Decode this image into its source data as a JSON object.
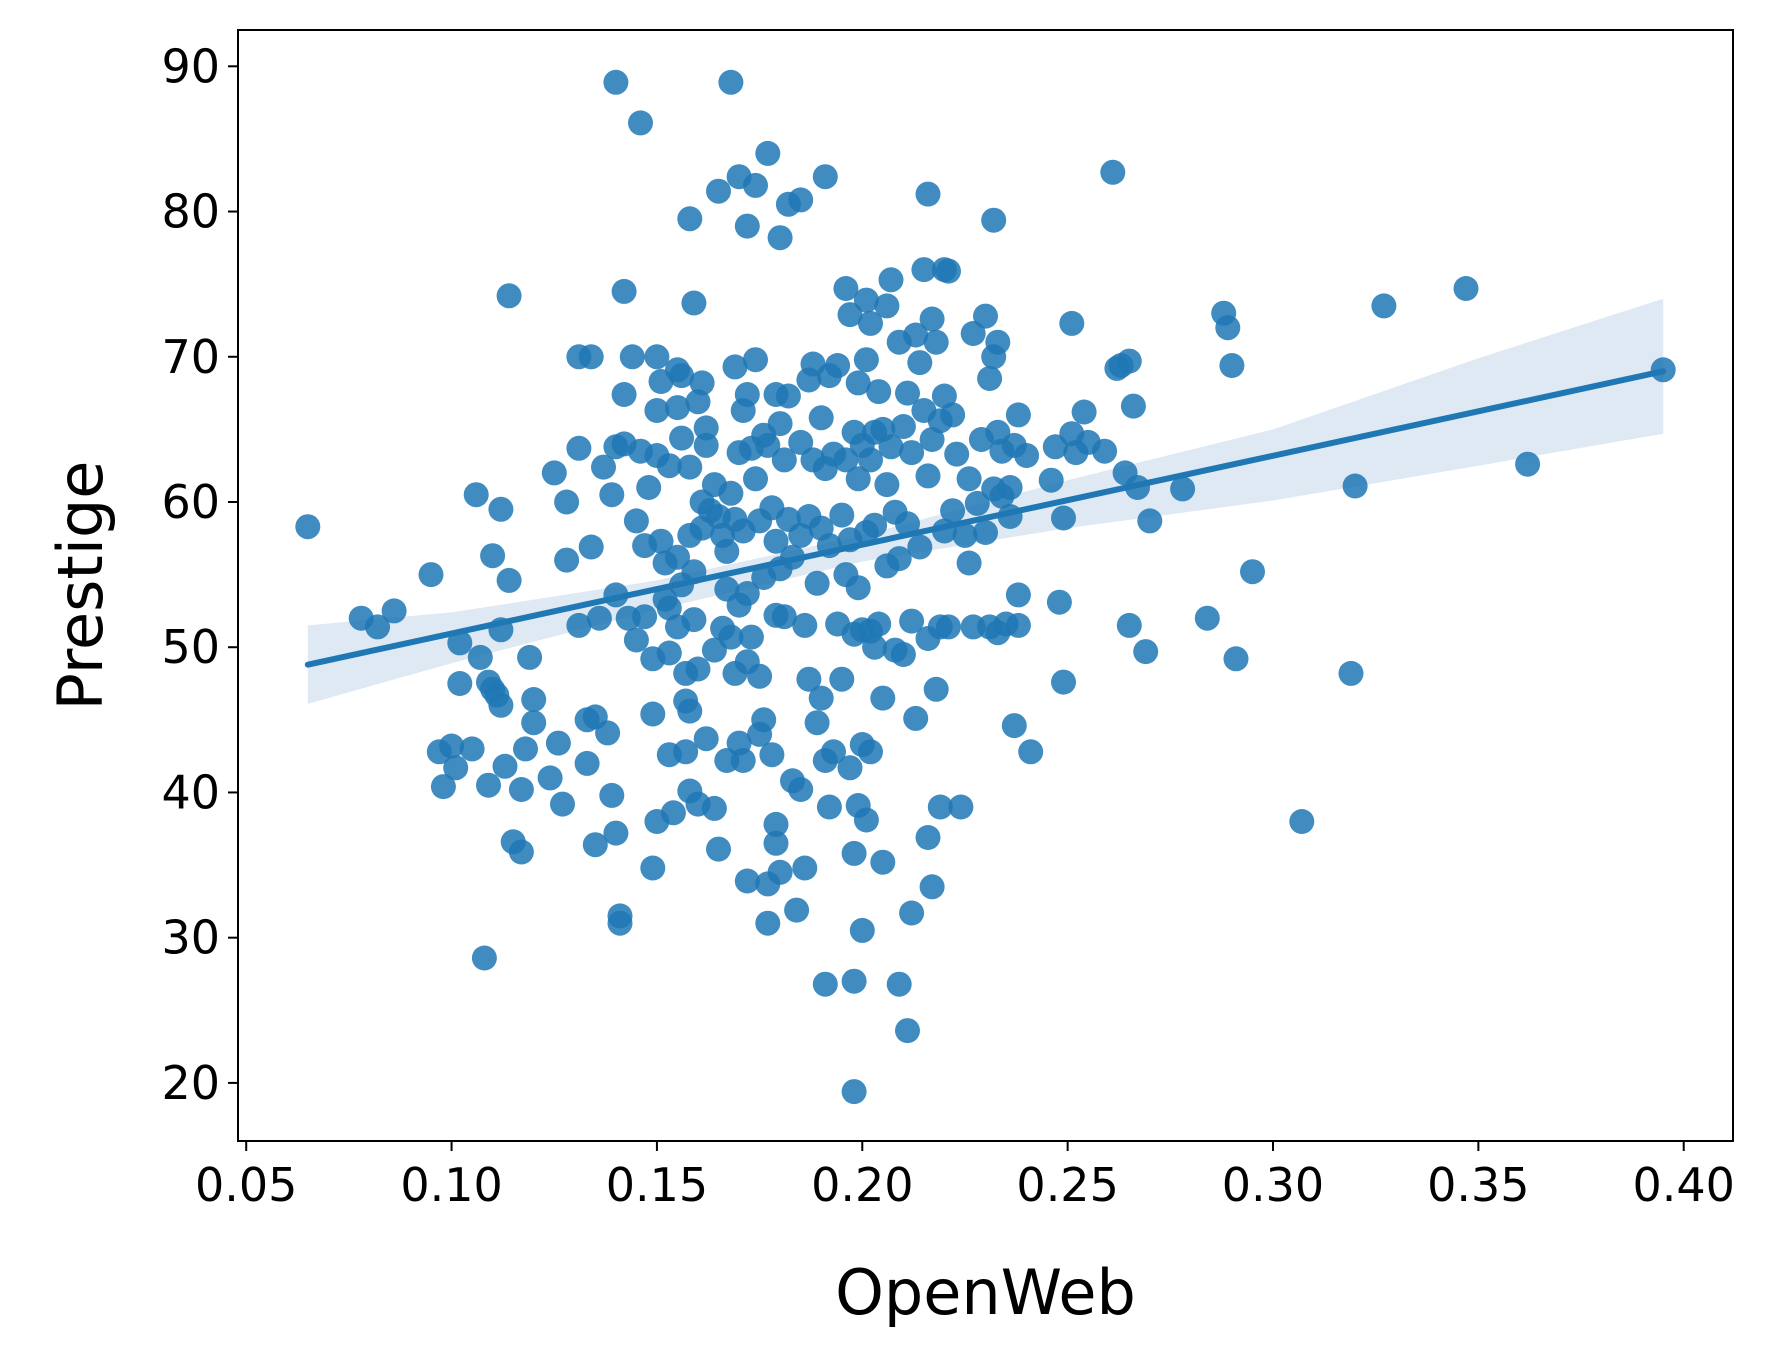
{
  "chart_data": {
    "type": "scatter",
    "title": "",
    "xlabel": "OpenWeb",
    "ylabel": "Prestige",
    "xlim": [
      0.048,
      0.412
    ],
    "ylim": [
      16,
      92.5
    ],
    "xticks": [
      0.05,
      0.1,
      0.15,
      0.2,
      0.25,
      0.3,
      0.35,
      0.4
    ],
    "xtick_labels": [
      "0.05",
      "0.10",
      "0.15",
      "0.20",
      "0.25",
      "0.30",
      "0.35",
      "0.40"
    ],
    "yticks": [
      20,
      30,
      40,
      50,
      60,
      70,
      80,
      90
    ],
    "ytick_labels": [
      "20",
      "30",
      "40",
      "50",
      "60",
      "70",
      "80",
      "90"
    ],
    "grid": false,
    "colors": {
      "points": "#1f77b4",
      "line": "#1f77b4",
      "band": "#dbe7f3"
    },
    "regression": {
      "x": [
        0.065,
        0.395
      ],
      "y": [
        48.8,
        69.0
      ]
    },
    "confidence_band": {
      "x": [
        0.065,
        0.1,
        0.15,
        0.2,
        0.25,
        0.3,
        0.35,
        0.395
      ],
      "lower": [
        46.1,
        48.9,
        52.6,
        55.9,
        58.2,
        60.1,
        62.5,
        64.7
      ],
      "upper": [
        51.5,
        52.4,
        54.6,
        57.7,
        61.5,
        65.0,
        69.9,
        74.0
      ]
    },
    "points": [
      [
        0.065,
        58.3
      ],
      [
        0.078,
        52.0
      ],
      [
        0.082,
        51.4
      ],
      [
        0.086,
        52.5
      ],
      [
        0.095,
        55.0
      ],
      [
        0.097,
        42.8
      ],
      [
        0.098,
        40.4
      ],
      [
        0.1,
        43.2
      ],
      [
        0.101,
        41.7
      ],
      [
        0.102,
        50.3
      ],
      [
        0.102,
        47.5
      ],
      [
        0.105,
        43.0
      ],
      [
        0.106,
        60.5
      ],
      [
        0.107,
        49.3
      ],
      [
        0.108,
        28.6
      ],
      [
        0.109,
        47.6
      ],
      [
        0.109,
        40.5
      ],
      [
        0.11,
        56.3
      ],
      [
        0.11,
        47.1
      ],
      [
        0.111,
        46.7
      ],
      [
        0.112,
        59.5
      ],
      [
        0.112,
        51.2
      ],
      [
        0.112,
        46.0
      ],
      [
        0.113,
        41.8
      ],
      [
        0.114,
        74.2
      ],
      [
        0.114,
        54.6
      ],
      [
        0.115,
        36.6
      ],
      [
        0.117,
        35.9
      ],
      [
        0.117,
        40.2
      ],
      [
        0.118,
        43.0
      ],
      [
        0.119,
        49.3
      ],
      [
        0.12,
        46.4
      ],
      [
        0.12,
        44.8
      ],
      [
        0.124,
        41.0
      ],
      [
        0.125,
        62.0
      ],
      [
        0.126,
        43.4
      ],
      [
        0.127,
        39.2
      ],
      [
        0.128,
        60.0
      ],
      [
        0.128,
        56.0
      ],
      [
        0.131,
        70.0
      ],
      [
        0.131,
        63.7
      ],
      [
        0.131,
        51.5
      ],
      [
        0.133,
        45.0
      ],
      [
        0.133,
        42.0
      ],
      [
        0.134,
        70.0
      ],
      [
        0.134,
        56.9
      ],
      [
        0.135,
        45.2
      ],
      [
        0.135,
        36.4
      ],
      [
        0.136,
        52.0
      ],
      [
        0.137,
        62.4
      ],
      [
        0.138,
        44.1
      ],
      [
        0.139,
        60.5
      ],
      [
        0.139,
        39.8
      ],
      [
        0.14,
        88.9
      ],
      [
        0.14,
        53.6
      ],
      [
        0.14,
        63.8
      ],
      [
        0.14,
        37.2
      ],
      [
        0.141,
        31.5
      ],
      [
        0.141,
        31.0
      ],
      [
        0.142,
        74.5
      ],
      [
        0.142,
        67.4
      ],
      [
        0.142,
        64.0
      ],
      [
        0.143,
        52.0
      ],
      [
        0.144,
        70.0
      ],
      [
        0.145,
        58.7
      ],
      [
        0.145,
        50.5
      ],
      [
        0.146,
        86.1
      ],
      [
        0.146,
        63.5
      ],
      [
        0.147,
        57.0
      ],
      [
        0.147,
        52.1
      ],
      [
        0.148,
        61.0
      ],
      [
        0.149,
        49.2
      ],
      [
        0.149,
        45.4
      ],
      [
        0.149,
        34.8
      ],
      [
        0.15,
        70.0
      ],
      [
        0.15,
        66.3
      ],
      [
        0.15,
        63.2
      ],
      [
        0.15,
        38.0
      ],
      [
        0.151,
        68.3
      ],
      [
        0.151,
        57.3
      ],
      [
        0.152,
        55.8
      ],
      [
        0.152,
        53.3
      ],
      [
        0.153,
        62.5
      ],
      [
        0.153,
        52.7
      ],
      [
        0.153,
        49.6
      ],
      [
        0.153,
        42.6
      ],
      [
        0.154,
        38.6
      ],
      [
        0.155,
        69.1
      ],
      [
        0.155,
        66.5
      ],
      [
        0.155,
        56.2
      ],
      [
        0.155,
        51.4
      ],
      [
        0.156,
        68.7
      ],
      [
        0.156,
        64.4
      ],
      [
        0.156,
        54.3
      ],
      [
        0.157,
        46.3
      ],
      [
        0.157,
        42.8
      ],
      [
        0.157,
        48.2
      ],
      [
        0.158,
        79.5
      ],
      [
        0.158,
        62.4
      ],
      [
        0.158,
        57.7
      ],
      [
        0.158,
        45.6
      ],
      [
        0.158,
        40.1
      ],
      [
        0.159,
        73.7
      ],
      [
        0.159,
        55.2
      ],
      [
        0.159,
        51.9
      ],
      [
        0.16,
        66.9
      ],
      [
        0.16,
        48.5
      ],
      [
        0.16,
        39.2
      ],
      [
        0.161,
        68.2
      ],
      [
        0.161,
        60.0
      ],
      [
        0.161,
        58.2
      ],
      [
        0.162,
        65.1
      ],
      [
        0.162,
        63.9
      ],
      [
        0.162,
        43.7
      ],
      [
        0.163,
        59.4
      ],
      [
        0.164,
        61.2
      ],
      [
        0.164,
        49.8
      ],
      [
        0.164,
        38.9
      ],
      [
        0.165,
        81.4
      ],
      [
        0.165,
        59.0
      ],
      [
        0.165,
        36.1
      ],
      [
        0.166,
        57.7
      ],
      [
        0.166,
        51.3
      ],
      [
        0.167,
        56.6
      ],
      [
        0.167,
        54.0
      ],
      [
        0.167,
        42.2
      ],
      [
        0.168,
        88.9
      ],
      [
        0.168,
        60.6
      ],
      [
        0.168,
        50.7
      ],
      [
        0.169,
        69.3
      ],
      [
        0.169,
        58.8
      ],
      [
        0.169,
        48.2
      ],
      [
        0.17,
        82.4
      ],
      [
        0.17,
        63.4
      ],
      [
        0.17,
        52.9
      ],
      [
        0.17,
        43.4
      ],
      [
        0.171,
        66.3
      ],
      [
        0.171,
        58.0
      ],
      [
        0.171,
        42.2
      ],
      [
        0.172,
        79.0
      ],
      [
        0.172,
        67.4
      ],
      [
        0.172,
        53.7
      ],
      [
        0.172,
        49.0
      ],
      [
        0.172,
        33.9
      ],
      [
        0.173,
        63.7
      ],
      [
        0.173,
        50.7
      ],
      [
        0.174,
        81.8
      ],
      [
        0.174,
        69.8
      ],
      [
        0.174,
        61.6
      ],
      [
        0.175,
        58.7
      ],
      [
        0.175,
        48.0
      ],
      [
        0.175,
        44.0
      ],
      [
        0.176,
        64.6
      ],
      [
        0.176,
        54.8
      ],
      [
        0.176,
        45.0
      ],
      [
        0.177,
        84.0
      ],
      [
        0.177,
        63.9
      ],
      [
        0.177,
        33.7
      ],
      [
        0.177,
        31.0
      ],
      [
        0.178,
        59.6
      ],
      [
        0.178,
        42.6
      ],
      [
        0.179,
        67.4
      ],
      [
        0.179,
        57.3
      ],
      [
        0.179,
        52.2
      ],
      [
        0.179,
        37.8
      ],
      [
        0.179,
        36.5
      ],
      [
        0.18,
        78.2
      ],
      [
        0.18,
        65.4
      ],
      [
        0.18,
        55.4
      ],
      [
        0.18,
        34.5
      ],
      [
        0.181,
        62.9
      ],
      [
        0.181,
        52.1
      ],
      [
        0.182,
        80.5
      ],
      [
        0.182,
        67.3
      ],
      [
        0.182,
        58.8
      ],
      [
        0.183,
        56.2
      ],
      [
        0.183,
        40.8
      ],
      [
        0.184,
        31.9
      ],
      [
        0.185,
        80.8
      ],
      [
        0.185,
        64.1
      ],
      [
        0.185,
        57.7
      ],
      [
        0.185,
        40.2
      ],
      [
        0.186,
        51.5
      ],
      [
        0.186,
        34.8
      ],
      [
        0.187,
        68.4
      ],
      [
        0.187,
        59.0
      ],
      [
        0.187,
        47.8
      ],
      [
        0.188,
        69.5
      ],
      [
        0.188,
        62.9
      ],
      [
        0.189,
        54.4
      ],
      [
        0.189,
        44.8
      ],
      [
        0.19,
        65.8
      ],
      [
        0.19,
        58.2
      ],
      [
        0.19,
        46.5
      ],
      [
        0.191,
        82.4
      ],
      [
        0.191,
        62.3
      ],
      [
        0.191,
        42.2
      ],
      [
        0.191,
        26.8
      ],
      [
        0.192,
        68.7
      ],
      [
        0.192,
        57.0
      ],
      [
        0.192,
        39.0
      ],
      [
        0.193,
        63.3
      ],
      [
        0.193,
        42.8
      ],
      [
        0.194,
        69.4
      ],
      [
        0.194,
        51.6
      ],
      [
        0.195,
        59.1
      ],
      [
        0.195,
        47.8
      ],
      [
        0.196,
        74.7
      ],
      [
        0.196,
        62.9
      ],
      [
        0.196,
        55.0
      ],
      [
        0.197,
        72.9
      ],
      [
        0.197,
        57.4
      ],
      [
        0.197,
        41.7
      ],
      [
        0.198,
        64.8
      ],
      [
        0.198,
        50.9
      ],
      [
        0.198,
        35.8
      ],
      [
        0.198,
        27.0
      ],
      [
        0.198,
        19.4
      ],
      [
        0.199,
        68.2
      ],
      [
        0.199,
        61.6
      ],
      [
        0.199,
        54.1
      ],
      [
        0.199,
        39.1
      ],
      [
        0.2,
        63.9
      ],
      [
        0.2,
        51.2
      ],
      [
        0.2,
        43.3
      ],
      [
        0.2,
        30.5
      ],
      [
        0.201,
        73.9
      ],
      [
        0.201,
        69.8
      ],
      [
        0.201,
        57.9
      ],
      [
        0.201,
        38.1
      ],
      [
        0.202,
        72.3
      ],
      [
        0.202,
        62.9
      ],
      [
        0.202,
        51.1
      ],
      [
        0.202,
        42.8
      ],
      [
        0.203,
        64.8
      ],
      [
        0.203,
        58.4
      ],
      [
        0.203,
        50.0
      ],
      [
        0.204,
        67.6
      ],
      [
        0.204,
        51.6
      ],
      [
        0.205,
        65.0
      ],
      [
        0.205,
        46.5
      ],
      [
        0.205,
        35.2
      ],
      [
        0.206,
        73.5
      ],
      [
        0.206,
        61.2
      ],
      [
        0.206,
        55.6
      ],
      [
        0.207,
        75.3
      ],
      [
        0.207,
        63.8
      ],
      [
        0.208,
        59.3
      ],
      [
        0.208,
        49.8
      ],
      [
        0.209,
        71.0
      ],
      [
        0.209,
        56.1
      ],
      [
        0.209,
        26.8
      ],
      [
        0.21,
        65.2
      ],
      [
        0.21,
        49.5
      ],
      [
        0.211,
        67.5
      ],
      [
        0.211,
        58.5
      ],
      [
        0.211,
        23.6
      ],
      [
        0.212,
        63.4
      ],
      [
        0.212,
        51.8
      ],
      [
        0.212,
        31.7
      ],
      [
        0.213,
        71.5
      ],
      [
        0.213,
        45.1
      ],
      [
        0.214,
        69.6
      ],
      [
        0.214,
        56.9
      ],
      [
        0.215,
        76.0
      ],
      [
        0.215,
        66.3
      ],
      [
        0.216,
        81.2
      ],
      [
        0.216,
        61.8
      ],
      [
        0.216,
        50.6
      ],
      [
        0.216,
        36.9
      ],
      [
        0.217,
        72.6
      ],
      [
        0.217,
        64.3
      ],
      [
        0.217,
        33.5
      ],
      [
        0.218,
        71.0
      ],
      [
        0.218,
        47.1
      ],
      [
        0.219,
        65.6
      ],
      [
        0.219,
        51.4
      ],
      [
        0.219,
        39.0
      ],
      [
        0.22,
        76.0
      ],
      [
        0.22,
        67.3
      ],
      [
        0.22,
        58.0
      ],
      [
        0.221,
        75.9
      ],
      [
        0.221,
        51.4
      ],
      [
        0.222,
        66.0
      ],
      [
        0.222,
        59.4
      ],
      [
        0.223,
        63.3
      ],
      [
        0.224,
        39.0
      ],
      [
        0.225,
        57.7
      ],
      [
        0.226,
        55.8
      ],
      [
        0.226,
        61.6
      ],
      [
        0.227,
        71.6
      ],
      [
        0.227,
        51.4
      ],
      [
        0.228,
        59.9
      ],
      [
        0.229,
        64.3
      ],
      [
        0.23,
        72.8
      ],
      [
        0.23,
        57.9
      ],
      [
        0.231,
        68.5
      ],
      [
        0.231,
        51.4
      ],
      [
        0.232,
        79.4
      ],
      [
        0.232,
        70.0
      ],
      [
        0.232,
        60.9
      ],
      [
        0.233,
        71.0
      ],
      [
        0.233,
        64.8
      ],
      [
        0.233,
        51.0
      ],
      [
        0.234,
        63.5
      ],
      [
        0.234,
        60.4
      ],
      [
        0.235,
        51.6
      ],
      [
        0.236,
        61.0
      ],
      [
        0.236,
        59.0
      ],
      [
        0.237,
        63.9
      ],
      [
        0.237,
        44.6
      ],
      [
        0.238,
        66.0
      ],
      [
        0.238,
        53.6
      ],
      [
        0.238,
        51.5
      ],
      [
        0.24,
        63.2
      ],
      [
        0.241,
        42.8
      ],
      [
        0.246,
        61.5
      ],
      [
        0.247,
        63.8
      ],
      [
        0.248,
        53.1
      ],
      [
        0.249,
        47.6
      ],
      [
        0.249,
        58.9
      ],
      [
        0.251,
        72.3
      ],
      [
        0.251,
        64.7
      ],
      [
        0.252,
        63.4
      ],
      [
        0.254,
        66.2
      ],
      [
        0.255,
        64.1
      ],
      [
        0.259,
        63.5
      ],
      [
        0.261,
        82.7
      ],
      [
        0.262,
        69.2
      ],
      [
        0.263,
        69.4
      ],
      [
        0.264,
        62.0
      ],
      [
        0.265,
        69.7
      ],
      [
        0.265,
        51.5
      ],
      [
        0.266,
        66.6
      ],
      [
        0.267,
        61.0
      ],
      [
        0.269,
        49.7
      ],
      [
        0.27,
        58.7
      ],
      [
        0.278,
        60.9
      ],
      [
        0.284,
        52.0
      ],
      [
        0.288,
        73.0
      ],
      [
        0.289,
        72.0
      ],
      [
        0.29,
        69.4
      ],
      [
        0.291,
        49.2
      ],
      [
        0.295,
        55.2
      ],
      [
        0.307,
        38.0
      ],
      [
        0.319,
        48.2
      ],
      [
        0.32,
        61.1
      ],
      [
        0.327,
        73.5
      ],
      [
        0.347,
        74.7
      ],
      [
        0.362,
        62.6
      ],
      [
        0.395,
        69.1
      ]
    ]
  }
}
